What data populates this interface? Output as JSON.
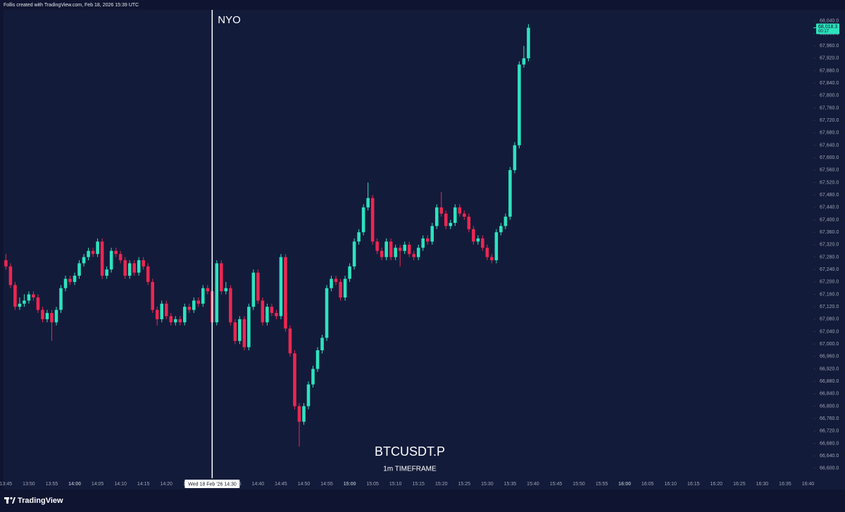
{
  "chart_data": {
    "type": "candlestick",
    "header": "Follis created with TradingView.com, Feb 18, 2026 15:39 UTC",
    "brand": "TradingView",
    "watermark": {
      "symbol": "BTCUSDT.P",
      "timeframe": "1m TIMEFRAME"
    },
    "marker": {
      "label": "NYO",
      "time": "14:30",
      "date_label": "Wed 18 Feb '26"
    },
    "last_price": {
      "value": 68018.3,
      "label": "68,018.3",
      "countdown": "00:17"
    },
    "up_color": "#2de3bf",
    "down_color": "#ec2751",
    "xlim": [
      "13:45",
      "16:41"
    ],
    "ylim": [
      66568,
      68076
    ],
    "categories": [
      "13:45",
      "13:46",
      "13:47",
      "13:48",
      "13:49",
      "13:50",
      "13:51",
      "13:52",
      "13:53",
      "13:54",
      "13:55",
      "13:56",
      "13:57",
      "13:58",
      "13:59",
      "14:00",
      "14:01",
      "14:02",
      "14:03",
      "14:04",
      "14:05",
      "14:06",
      "14:07",
      "14:08",
      "14:09",
      "14:10",
      "14:11",
      "14:12",
      "14:13",
      "14:14",
      "14:15",
      "14:16",
      "14:17",
      "14:18",
      "14:19",
      "14:20",
      "14:21",
      "14:22",
      "14:23",
      "14:24",
      "14:25",
      "14:26",
      "14:27",
      "14:28",
      "14:29",
      "14:30",
      "14:31",
      "14:32",
      "14:33",
      "14:34",
      "14:35",
      "14:36",
      "14:37",
      "14:38",
      "14:39",
      "14:40",
      "14:41",
      "14:42",
      "14:43",
      "14:44",
      "14:45",
      "14:46",
      "14:47",
      "14:48",
      "14:49",
      "14:50",
      "14:51",
      "14:52",
      "14:53",
      "14:54",
      "14:55",
      "14:56",
      "14:57",
      "14:58",
      "14:59",
      "15:00",
      "15:01",
      "15:02",
      "15:03",
      "15:04",
      "15:05",
      "15:06",
      "15:07",
      "15:08",
      "15:09",
      "15:10",
      "15:11",
      "15:12",
      "15:13",
      "15:14",
      "15:15",
      "15:16",
      "15:17",
      "15:18",
      "15:19",
      "15:20",
      "15:21",
      "15:22",
      "15:23",
      "15:24",
      "15:25",
      "15:26",
      "15:27",
      "15:28",
      "15:29",
      "15:30",
      "15:31",
      "15:32",
      "15:33",
      "15:34",
      "15:35",
      "15:36",
      "15:37",
      "15:38",
      "15:39"
    ],
    "ohlc": {
      "open": [
        67270,
        67250,
        67190,
        67120,
        67130,
        67140,
        67160,
        67150,
        67110,
        67080,
        67100,
        67070,
        67110,
        67180,
        67210,
        67200,
        67220,
        67260,
        67280,
        67300,
        67290,
        67330,
        67220,
        67240,
        67300,
        67290,
        67270,
        67220,
        67260,
        67230,
        67270,
        67250,
        67200,
        67110,
        67080,
        67130,
        67090,
        67070,
        67080,
        67070,
        67120,
        67110,
        67140,
        67130,
        67180,
        67170,
        67070,
        67260,
        67170,
        67180,
        67070,
        67010,
        67080,
        66990,
        67120,
        67230,
        67140,
        67070,
        67120,
        67100,
        67090,
        67280,
        67050,
        66970,
        66800,
        66750,
        66800,
        66870,
        66920,
        66980,
        67020,
        67180,
        67210,
        67200,
        67150,
        67210,
        67250,
        67330,
        67360,
        67440,
        67470,
        67330,
        67300,
        67280,
        67330,
        67280,
        67310,
        67300,
        67320,
        67290,
        67280,
        67310,
        67340,
        67330,
        67380,
        67440,
        67420,
        67380,
        67390,
        67440,
        67420,
        67410,
        67370,
        67330,
        67340,
        67310,
        67280,
        67270,
        67360,
        67380,
        67410,
        67560,
        67640,
        67900,
        67920
      ],
      "high": [
        67290,
        67260,
        67200,
        67150,
        67160,
        67170,
        67170,
        67160,
        67120,
        67110,
        67110,
        67120,
        67190,
        67220,
        67220,
        67230,
        67270,
        67290,
        67310,
        67310,
        67340,
        67340,
        67250,
        67310,
        67310,
        67300,
        67280,
        67270,
        67270,
        67280,
        67280,
        67260,
        67210,
        67120,
        67140,
        67140,
        67100,
        67090,
        67090,
        67130,
        67130,
        67150,
        67150,
        67190,
        67190,
        67180,
        67270,
        67270,
        67200,
        67190,
        67080,
        67090,
        67090,
        67130,
        67240,
        67240,
        67150,
        67130,
        67130,
        67110,
        67290,
        67290,
        67060,
        66980,
        66810,
        66810,
        66880,
        66930,
        66990,
        67030,
        67190,
        67220,
        67220,
        67210,
        67220,
        67260,
        67340,
        67370,
        67450,
        67520,
        67480,
        67340,
        67310,
        67340,
        67340,
        67320,
        67320,
        67330,
        67330,
        67300,
        67320,
        67350,
        67350,
        67390,
        67450,
        67490,
        67430,
        67400,
        67450,
        67450,
        67430,
        67420,
        67380,
        67350,
        67350,
        67320,
        67290,
        67370,
        67390,
        67420,
        67570,
        67650,
        67910,
        67960,
        68030
      ],
      "low": [
        67240,
        67180,
        67110,
        67110,
        67120,
        67130,
        67140,
        67100,
        67070,
        67070,
        67010,
        67060,
        67100,
        67170,
        67190,
        67190,
        67210,
        67250,
        67270,
        67280,
        67280,
        67210,
        67210,
        67230,
        67280,
        67260,
        67210,
        67210,
        67220,
        67220,
        67240,
        67190,
        67100,
        67060,
        67070,
        67080,
        67060,
        67060,
        67060,
        67060,
        67100,
        67100,
        67120,
        67120,
        67160,
        67060,
        67060,
        67160,
        67160,
        67060,
        67000,
        67000,
        66980,
        66980,
        67110,
        67130,
        67060,
        67060,
        67090,
        67080,
        67080,
        67040,
        66960,
        66790,
        66670,
        66740,
        66790,
        66860,
        66910,
        66970,
        67010,
        67170,
        67190,
        67140,
        67140,
        67200,
        67240,
        67320,
        67350,
        67430,
        67320,
        67290,
        67270,
        67270,
        67270,
        67270,
        67250,
        67290,
        67280,
        67270,
        67270,
        67300,
        67320,
        67320,
        67370,
        67410,
        67370,
        67370,
        67380,
        67410,
        67400,
        67360,
        67320,
        67320,
        67300,
        67270,
        67260,
        67260,
        67350,
        67370,
        67400,
        67550,
        67630,
        67890,
        67910
      ],
      "close": [
        67250,
        67190,
        67120,
        67130,
        67140,
        67160,
        67150,
        67110,
        67080,
        67100,
        67070,
        67110,
        67180,
        67210,
        67200,
        67220,
        67260,
        67280,
        67300,
        67290,
        67330,
        67220,
        67240,
        67300,
        67290,
        67270,
        67220,
        67260,
        67230,
        67270,
        67250,
        67200,
        67110,
        67080,
        67130,
        67090,
        67070,
        67080,
        67070,
        67120,
        67110,
        67140,
        67130,
        67180,
        67170,
        67070,
        67260,
        67170,
        67180,
        67070,
        67010,
        67080,
        66990,
        67120,
        67230,
        67140,
        67070,
        67120,
        67100,
        67090,
        67280,
        67050,
        66970,
        66800,
        66750,
        66800,
        66870,
        66920,
        66980,
        67020,
        67180,
        67210,
        67200,
        67150,
        67210,
        67250,
        67330,
        67360,
        67440,
        67470,
        67330,
        67300,
        67280,
        67330,
        67280,
        67310,
        67300,
        67320,
        67290,
        67280,
        67310,
        67340,
        67330,
        67380,
        67440,
        67420,
        67380,
        67390,
        67440,
        67420,
        67410,
        67370,
        67330,
        67340,
        67310,
        67280,
        67270,
        67360,
        67380,
        67410,
        67560,
        67640,
        67900,
        67920,
        68018.3
      ]
    },
    "xticks": [
      "13:45",
      "13:50",
      "13:55",
      "14:00",
      "14:05",
      "14:10",
      "14:15",
      "14:20",
      "14:25",
      "14:30",
      "14:35",
      "14:40",
      "14:45",
      "14:50",
      "14:55",
      "15:00",
      "15:05",
      "15:10",
      "15:15",
      "15:20",
      "15:25",
      "15:30",
      "15:35",
      "15:40",
      "15:45",
      "15:50",
      "15:55",
      "16:00",
      "16:05",
      "16:10",
      "16:15",
      "16:20",
      "16:25",
      "16:30",
      "16:35",
      "16:40"
    ],
    "yticks": [
      {
        "value": 66600,
        "label": "66,600.0"
      },
      {
        "value": 66640,
        "label": "66,640.0"
      },
      {
        "value": 66680,
        "label": "66,680.0"
      },
      {
        "value": 66720,
        "label": "66,720.0"
      },
      {
        "value": 66760,
        "label": "66,760.0"
      },
      {
        "value": 66800,
        "label": "66,800.0"
      },
      {
        "value": 66840,
        "label": "66,840.0"
      },
      {
        "value": 66880,
        "label": "66,880.0"
      },
      {
        "value": 66920,
        "label": "66,920.0"
      },
      {
        "value": 66960,
        "label": "66,960.0"
      },
      {
        "value": 67000,
        "label": "67,000.0"
      },
      {
        "value": 67040,
        "label": "67,040.0"
      },
      {
        "value": 67080,
        "label": "67,080.0"
      },
      {
        "value": 67120,
        "label": "67,120.0"
      },
      {
        "value": 67160,
        "label": "67,160.0"
      },
      {
        "value": 67200,
        "label": "67,200.0"
      },
      {
        "value": 67240,
        "label": "67,240.0"
      },
      {
        "value": 67280,
        "label": "67,280.0"
      },
      {
        "value": 67320,
        "label": "67,320.0"
      },
      {
        "value": 67360,
        "label": "67,360.0"
      },
      {
        "value": 67400,
        "label": "67,400.0"
      },
      {
        "value": 67440,
        "label": "67,440.0"
      },
      {
        "value": 67480,
        "label": "67,480.0"
      },
      {
        "value": 67520,
        "label": "67,520.0"
      },
      {
        "value": 67560,
        "label": "67,560.0"
      },
      {
        "value": 67600,
        "label": "67,600.0"
      },
      {
        "value": 67640,
        "label": "67,640.0"
      },
      {
        "value": 67680,
        "label": "67,680.0"
      },
      {
        "value": 67720,
        "label": "67,720.0"
      },
      {
        "value": 67760,
        "label": "67,760.0"
      },
      {
        "value": 67800,
        "label": "67,800.0"
      },
      {
        "value": 67840,
        "label": "67,840.0"
      },
      {
        "value": 67880,
        "label": "67,880.0"
      },
      {
        "value": 67920,
        "label": "67,920.0"
      },
      {
        "value": 67960,
        "label": "67,960.0"
      },
      {
        "value": 68000,
        "label": "68,000.0"
      },
      {
        "value": 68040,
        "label": "68,040.0"
      }
    ]
  }
}
